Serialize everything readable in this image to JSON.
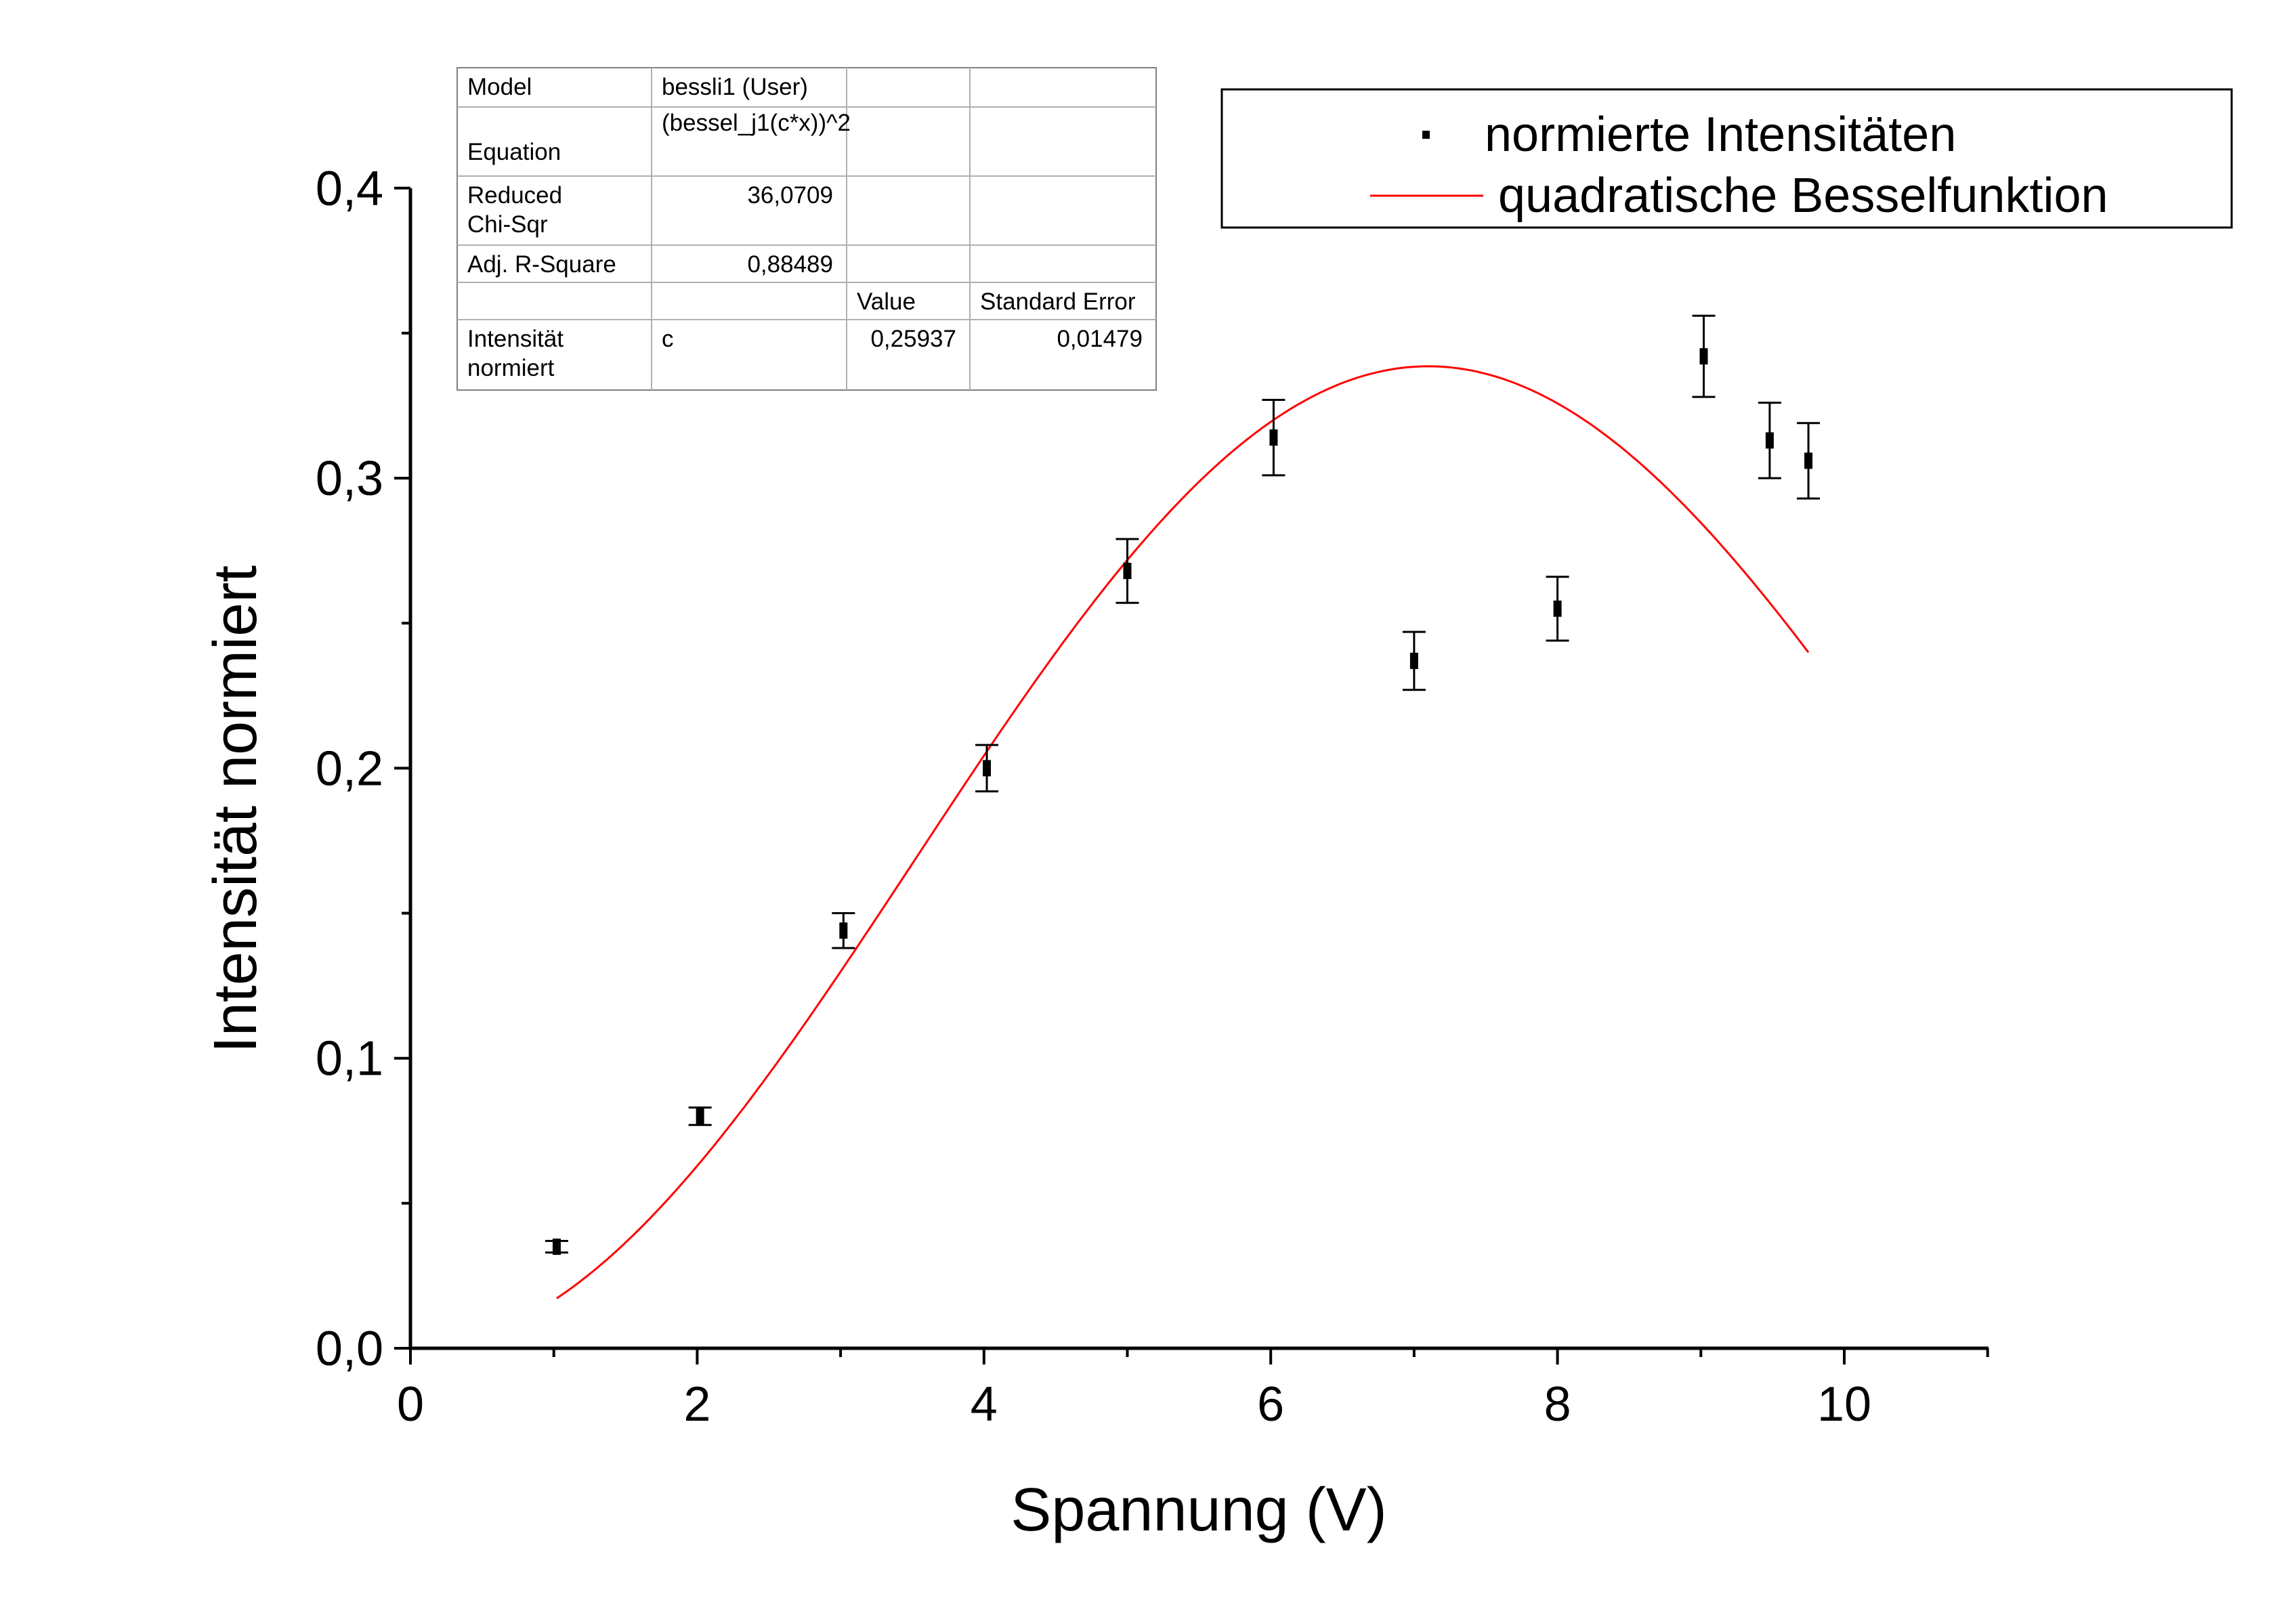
{
  "chart_data": {
    "type": "scatter",
    "xlabel": "Spannung (V)",
    "ylabel": "Intensität normiert",
    "xlim": [
      0,
      11
    ],
    "ylim": [
      0,
      0.4
    ],
    "x_ticks": [
      "0",
      "2",
      "4",
      "6",
      "8",
      "10"
    ],
    "y_ticks": [
      "0,0",
      "0,1",
      "0,2",
      "0,3",
      "0,4"
    ],
    "grid": false,
    "legend_position": "top-right",
    "series": [
      {
        "name": "normierte Intensitäten",
        "kind": "scatter-errorbar",
        "color": "#000000",
        "x": [
          1.02,
          2.02,
          3.02,
          4.02,
          5.0,
          6.02,
          7.0,
          8.0,
          9.02,
          9.48,
          9.75
        ],
        "y": [
          0.035,
          0.08,
          0.144,
          0.2,
          0.268,
          0.314,
          0.237,
          0.255,
          0.342,
          0.313,
          0.306
        ],
        "err": [
          0.002,
          0.003,
          0.006,
          0.008,
          0.011,
          0.013,
          0.01,
          0.011,
          0.014,
          0.013,
          0.013
        ]
      },
      {
        "name": "quadratische Besselfunktion",
        "kind": "fit-line",
        "color": "#ff0000",
        "function": "(bessel_j1(c*x))^2",
        "c": 0.25937,
        "x_range": [
          1.02,
          9.75
        ]
      }
    ]
  },
  "fit_table": {
    "rows": [
      [
        "Model",
        "bessli1 (User)",
        "",
        ""
      ],
      [
        "Equation",
        "(bessel_j1(c*x))^2",
        "",
        ""
      ],
      [
        "Reduced\nChi-Sqr",
        "36,0709",
        "",
        ""
      ],
      [
        "Adj. R-Square",
        "0,88489",
        "",
        ""
      ],
      [
        "",
        "",
        "Value",
        "Standard Error"
      ],
      [
        "Intensität\nnormiert",
        "c",
        "0,25937",
        "0,01479"
      ]
    ]
  }
}
